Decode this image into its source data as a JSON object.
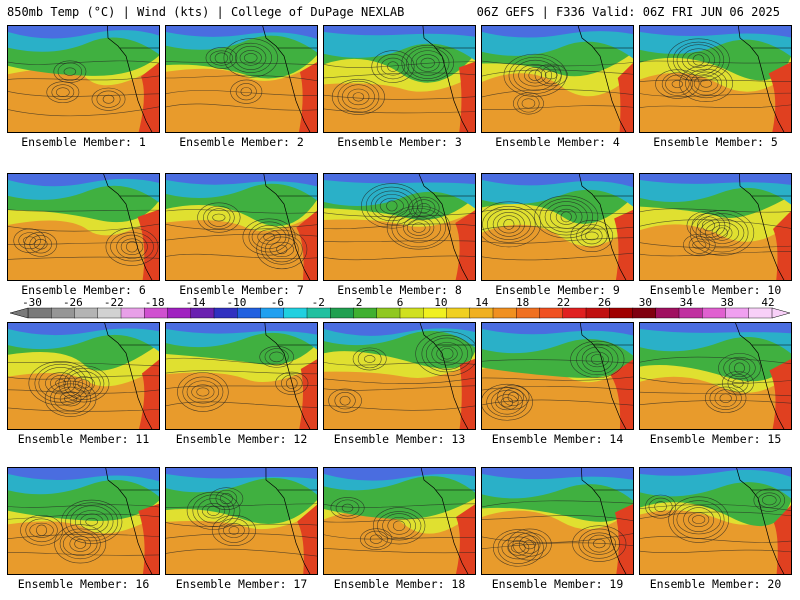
{
  "header": {
    "left": "850mb Temp (°C) | Wind (kts) | College of DuPage NEXLAB",
    "right": "06Z GEFS | F336 Valid: 06Z FRI JUN 06 2025"
  },
  "members": [
    "Ensemble Member: 1",
    "Ensemble Member: 2",
    "Ensemble Member: 3",
    "Ensemble Member: 4",
    "Ensemble Member: 5",
    "Ensemble Member: 6",
    "Ensemble Member: 7",
    "Ensemble Member: 8",
    "Ensemble Member: 9",
    "Ensemble Member: 10",
    "Ensemble Member: 11",
    "Ensemble Member: 12",
    "Ensemble Member: 13",
    "Ensemble Member: 14",
    "Ensemble Member: 15",
    "Ensemble Member: 16",
    "Ensemble Member: 17",
    "Ensemble Member: 18",
    "Ensemble Member: 19",
    "Ensemble Member: 20"
  ],
  "colorbar": {
    "ticks": [
      "-30",
      "-26",
      "-22",
      "-18",
      "-14",
      "-10",
      "-6",
      "-2",
      "2",
      "6",
      "10",
      "14",
      "18",
      "22",
      "26",
      "30",
      "34",
      "38",
      "42"
    ],
    "colors": [
      "#7a7a7a",
      "#969696",
      "#b4b4b4",
      "#d2d2d2",
      "#e8a0e8",
      "#d050d0",
      "#a020c0",
      "#6a20b0",
      "#3030c0",
      "#2060e0",
      "#20a0f0",
      "#20d0e0",
      "#20c0a0",
      "#20a050",
      "#40b030",
      "#90c820",
      "#d0e020",
      "#f0f020",
      "#f0d020",
      "#f0b020",
      "#f09020",
      "#f07020",
      "#f05020",
      "#e02020",
      "#c01010",
      "#a00000",
      "#800010",
      "#a01060",
      "#c030a0",
      "#e060d0",
      "#f0a0f0",
      "#f8d0f8"
    ],
    "field_colors": {
      "cold": "#4a6de0",
      "cool": "#2ab0c8",
      "mild": "#40b040",
      "warm": "#e0e030",
      "hot": "#e89b2c",
      "very_hot": "#e04020"
    }
  }
}
